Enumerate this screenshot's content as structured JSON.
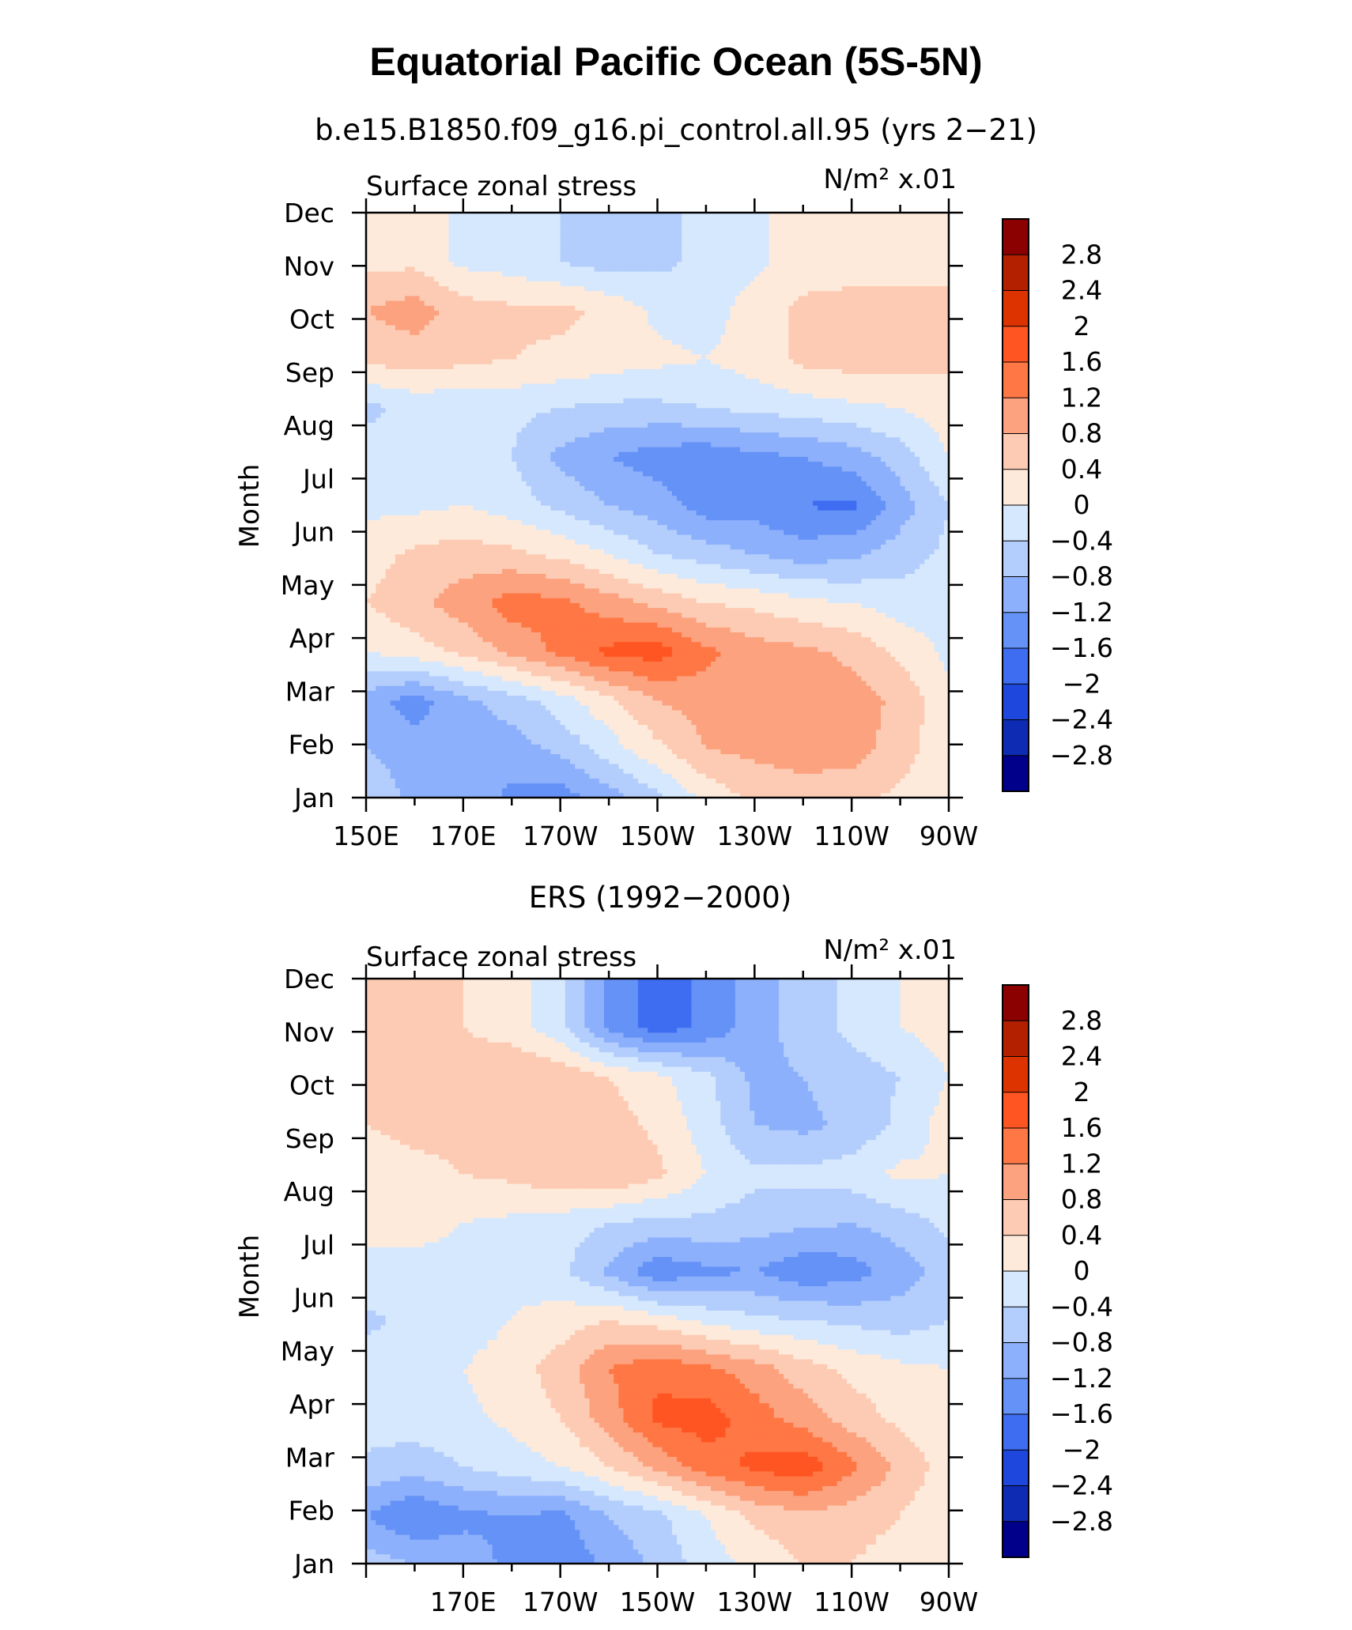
{
  "figure": {
    "title": "Equatorial Pacific Ocean (5S-5N)",
    "subtitle": "b.e15.B1850.f09_g16.pi_control.all.95 (yrs 2−21)"
  },
  "palette": {
    "levels": [
      "2.8",
      "2.4",
      "2",
      "1.6",
      "1.2",
      "0.8",
      "0.4",
      "0",
      "−0.4",
      "−0.8",
      "−1.2",
      "−1.6",
      "−2",
      "−2.4",
      "−2.8"
    ],
    "colors": [
      "#8b0000",
      "#b22000",
      "#dd3300",
      "#ff5522",
      "#ff7744",
      "#fca27f",
      "#fdcbb3",
      "#feeadb",
      "#d6e8fd",
      "#b3cdfc",
      "#8cb0fb",
      "#6592f7",
      "#3e6df2",
      "#1d47dd",
      "#0d2bb3",
      "#00008b"
    ]
  },
  "chart_data": [
    {
      "type": "heatmap",
      "title": "b.e15.B1850.f09_g16.pi_control.all.95 (yrs 2−21)",
      "left_label": "Surface zonal stress",
      "units_label": "N/m² x.01",
      "ylabel": "Month",
      "xlabel": "",
      "x_ticks": [
        "150E",
        "170E",
        "170W",
        "150W",
        "130W",
        "110W",
        "90W"
      ],
      "y_ticks": [
        "Jan",
        "Feb",
        "Mar",
        "Apr",
        "May",
        "Jun",
        "Jul",
        "Aug",
        "Sep",
        "Oct",
        "Nov",
        "Dec"
      ],
      "x": [
        150,
        160,
        170,
        180,
        190,
        200,
        210,
        220,
        230,
        240,
        250,
        260,
        270
      ],
      "y": [
        "Jan",
        "Feb",
        "Mar",
        "Apr",
        "May",
        "Jun",
        "Jul",
        "Aug",
        "Sep",
        "Oct",
        "Nov",
        "Dec",
        "Dec"
      ],
      "colorbar_levels": [
        "2.8",
        "2.4",
        "2",
        "1.6",
        "1.2",
        "0.8",
        "0.4",
        "0",
        "−0.4",
        "−0.8",
        "−1.2",
        "−1.6",
        "−2",
        "−2.4",
        "−2.8"
      ],
      "values": [
        [
          -0.5,
          -0.9,
          -0.9,
          -1.3,
          -1.4,
          -1.0,
          -0.5,
          0.1,
          0.5,
          0.6,
          0.5,
          0.3,
          0.1
        ],
        [
          -0.8,
          -1.0,
          -1.1,
          -1.0,
          -0.7,
          -0.2,
          0.3,
          0.8,
          0.9,
          1.0,
          1.0,
          0.6,
          0.1
        ],
        [
          -1.0,
          -1.4,
          -0.9,
          -0.6,
          -0.2,
          0.3,
          0.8,
          1.0,
          1.0,
          1.0,
          1.0,
          0.7,
          0.1
        ],
        [
          0.0,
          0.2,
          0.5,
          0.9,
          1.3,
          1.7,
          1.8,
          1.3,
          1.0,
          0.9,
          0.7,
          0.3,
          -0.1
        ],
        [
          0.4,
          0.7,
          1.0,
          1.4,
          1.3,
          1.0,
          0.7,
          0.4,
          0.3,
          0.1,
          0.0,
          -0.2,
          -0.2
        ],
        [
          0.2,
          0.5,
          0.6,
          0.5,
          0.3,
          0.0,
          -0.4,
          -0.6,
          -0.8,
          -1.0,
          -0.9,
          -0.6,
          -0.3
        ],
        [
          -0.1,
          -0.1,
          0.0,
          -0.2,
          -0.5,
          -0.8,
          -1.0,
          -1.4,
          -1.4,
          -1.6,
          -1.7,
          -1.0,
          -0.4
        ],
        [
          -0.2,
          -0.2,
          -0.2,
          -0.4,
          -0.9,
          -1.2,
          -1.4,
          -1.5,
          -1.3,
          -1.2,
          -1.0,
          -0.6,
          0.0
        ],
        [
          -0.5,
          -0.3,
          -0.3,
          -0.3,
          -0.4,
          -0.5,
          -0.5,
          -0.4,
          -0.3,
          -0.2,
          -0.1,
          0.0,
          0.2
        ],
        [
          0.5,
          0.6,
          0.5,
          0.4,
          0.3,
          0.2,
          0.1,
          0.0,
          0.2,
          0.5,
          0.6,
          0.6,
          0.5
        ],
        [
          0.8,
          1.0,
          0.6,
          0.5,
          0.5,
          0.3,
          -0.1,
          -0.2,
          0.2,
          0.5,
          0.5,
          0.5,
          0.5
        ],
        [
          0.3,
          0.3,
          -0.1,
          -0.2,
          -0.4,
          -0.6,
          -0.5,
          -0.3,
          -0.1,
          0.2,
          0.3,
          0.3,
          0.3
        ],
        [
          0.3,
          0.3,
          -0.1,
          -0.2,
          -0.4,
          -0.6,
          -0.5,
          -0.3,
          -0.1,
          0.2,
          0.3,
          0.3,
          0.3
        ]
      ]
    },
    {
      "type": "heatmap",
      "title": "ERS (1992−2000)",
      "left_label": "Surface zonal stress",
      "units_label": "N/m² x.01",
      "ylabel": "Month",
      "xlabel": "",
      "x_ticks": [
        "170E",
        "170W",
        "150W",
        "130W",
        "110W",
        "90W"
      ],
      "y_ticks": [
        "Jan",
        "Feb",
        "Mar",
        "Apr",
        "May",
        "Jun",
        "Jul",
        "Aug",
        "Sep",
        "Oct",
        "Nov",
        "Dec"
      ],
      "x": [
        150,
        160,
        170,
        180,
        190,
        200,
        210,
        220,
        230,
        240,
        250,
        260,
        270
      ],
      "y": [
        "Jan",
        "Feb",
        "Mar",
        "Apr",
        "May",
        "Jun",
        "Jul",
        "Aug",
        "Sep",
        "Oct",
        "Nov",
        "Dec",
        "Dec"
      ],
      "colorbar_levels": [
        "2.8",
        "2.4",
        "2",
        "1.6",
        "1.2",
        "0.8",
        "0.4",
        "0",
        "−0.4",
        "−0.8",
        "−1.2",
        "−1.6",
        "−2",
        "−2.4",
        "−2.8"
      ],
      "values": [
        [
          -0.6,
          -0.8,
          -1.0,
          -1.3,
          -1.5,
          -1.1,
          -0.7,
          -0.2,
          0.1,
          0.4,
          0.4,
          0.2,
          0.1
        ],
        [
          -1.2,
          -1.6,
          -1.3,
          -1.2,
          -1.3,
          -0.8,
          -0.5,
          0.0,
          0.5,
          0.7,
          0.6,
          0.4,
          0.1
        ],
        [
          -0.5,
          -0.6,
          -0.4,
          -0.2,
          0.0,
          0.4,
          0.9,
          1.4,
          1.7,
          1.9,
          1.3,
          0.7,
          0.2
        ],
        [
          -0.2,
          -0.2,
          -0.1,
          0.1,
          0.4,
          1.0,
          1.7,
          1.8,
          1.4,
          1.0,
          0.6,
          0.3,
          0.1
        ],
        [
          -0.2,
          -0.1,
          0.0,
          0.2,
          0.6,
          1.2,
          1.5,
          1.3,
          1.0,
          0.6,
          0.3,
          0.1,
          0.0
        ],
        [
          -0.5,
          -0.3,
          -0.2,
          0.0,
          0.2,
          0.4,
          0.2,
          -0.1,
          -0.3,
          -0.4,
          -0.5,
          -0.6,
          -0.4
        ],
        [
          -0.1,
          -0.1,
          -0.1,
          -0.1,
          -0.3,
          -0.9,
          -1.5,
          -1.3,
          -1.2,
          -1.5,
          -1.4,
          -1.0,
          -0.6
        ],
        [
          0.1,
          0.1,
          0.0,
          -0.1,
          -0.2,
          -0.4,
          -0.5,
          -0.5,
          -0.6,
          -0.7,
          -0.8,
          -0.6,
          -0.3
        ],
        [
          0.2,
          0.3,
          0.4,
          0.5,
          0.7,
          0.8,
          0.5,
          0.0,
          -0.3,
          -0.3,
          -0.2,
          0.1,
          0.0
        ],
        [
          0.4,
          0.5,
          0.5,
          0.6,
          0.7,
          0.6,
          0.3,
          -0.2,
          -0.8,
          -0.9,
          -0.7,
          -0.3,
          0.2
        ],
        [
          0.4,
          0.5,
          0.6,
          0.8,
          0.7,
          0.4,
          0.1,
          -0.3,
          -0.9,
          -0.8,
          -0.6,
          -0.4,
          0.0
        ],
        [
          0.5,
          0.5,
          0.4,
          0.2,
          -0.3,
          -1.3,
          -1.8,
          -1.5,
          -1.0,
          -0.6,
          -0.3,
          0.0,
          0.2
        ],
        [
          0.5,
          0.5,
          0.4,
          0.2,
          -0.3,
          -1.3,
          -1.8,
          -1.5,
          -1.0,
          -0.6,
          -0.3,
          0.0,
          0.2
        ]
      ]
    }
  ]
}
